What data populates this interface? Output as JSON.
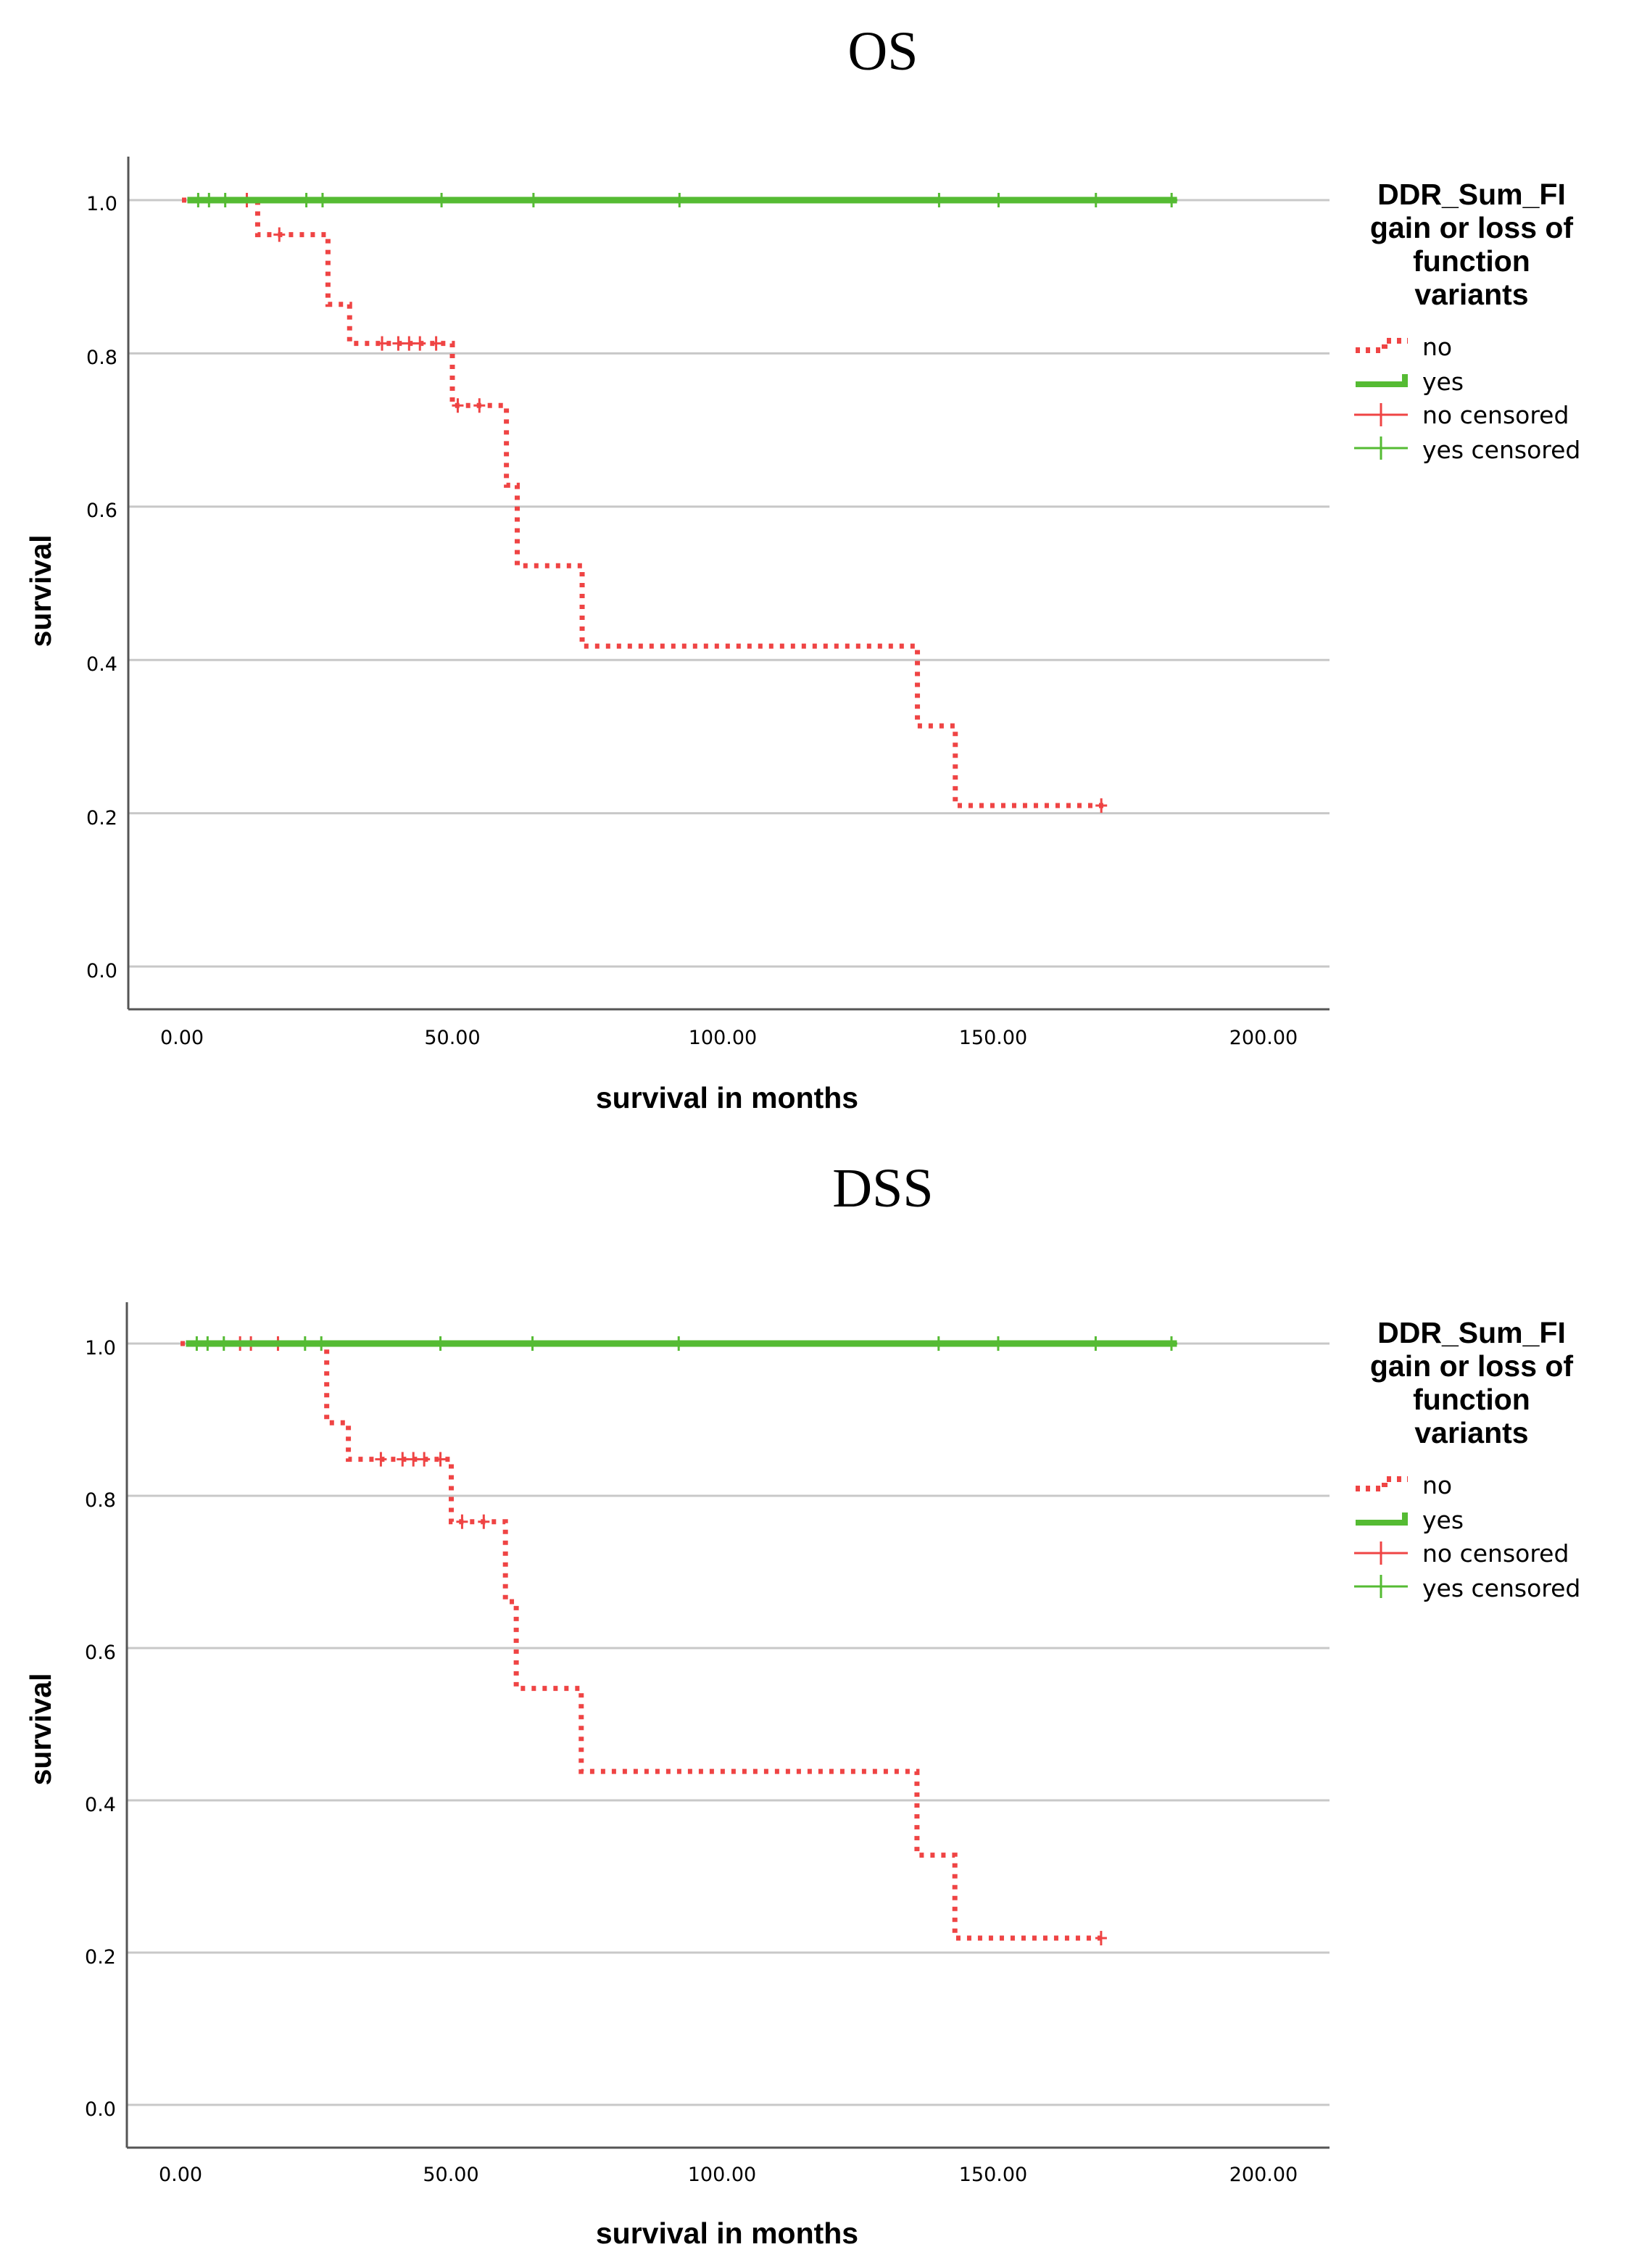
{
  "chart_data": [
    {
      "type": "line",
      "title": "OS",
      "xlabel": "survival in months",
      "ylabel": "survival",
      "xlim": [
        -10,
        212
      ],
      "ylim": [
        -0.05,
        1.06
      ],
      "xticks": [
        "0.00",
        "50.00",
        "100.00",
        "150.00",
        "200.00"
      ],
      "yticks": [
        "0.0",
        "0.2",
        "0.4",
        "0.6",
        "0.8",
        "1.0"
      ],
      "grid": "horizontal",
      "legend": {
        "position": "right",
        "title_lines": [
          "DDR_Sum_FI",
          "gain or loss of",
          "function",
          "variants"
        ],
        "entries": [
          "no",
          "yes",
          "no censored",
          "yes censored"
        ]
      },
      "series": [
        {
          "name": "no",
          "color": "#ef4444",
          "style": "dotted-step",
          "steps": [
            [
              0,
              1.0
            ],
            [
              14,
              0.955
            ],
            [
              27,
              0.864
            ],
            [
              31,
              0.813
            ],
            [
              50,
              0.732
            ],
            [
              60,
              0.628
            ],
            [
              62,
              0.523
            ],
            [
              74,
              0.418
            ],
            [
              136,
              0.314
            ],
            [
              143,
              0.21
            ],
            [
              171,
              0.21
            ]
          ],
          "censored_x": [
            12,
            18,
            37,
            40,
            42,
            44,
            47,
            51,
            55,
            170
          ]
        },
        {
          "name": "yes",
          "color": "#55bb33",
          "style": "solid-step",
          "steps": [
            [
              1,
              1.0
            ],
            [
              184,
              1.0
            ]
          ],
          "censored_x": [
            3,
            5,
            8,
            23,
            26,
            48,
            65,
            92,
            140,
            151,
            169,
            183
          ]
        }
      ]
    },
    {
      "type": "line",
      "title": "DSS",
      "xlabel": "survival in months",
      "ylabel": "survival",
      "xlim": [
        -10,
        212
      ],
      "ylim": [
        -0.05,
        1.06
      ],
      "xticks": [
        "0.00",
        "50.00",
        "100.00",
        "150.00",
        "200.00"
      ],
      "yticks": [
        "0.0",
        "0.2",
        "0.4",
        "0.6",
        "0.8",
        "1.0"
      ],
      "grid": "horizontal",
      "legend": {
        "position": "right",
        "title_lines": [
          "DDR_Sum_FI",
          "gain or loss of",
          "function",
          "variants"
        ],
        "entries": [
          "no",
          "yes",
          "no censored",
          "yes censored"
        ]
      },
      "series": [
        {
          "name": "no",
          "color": "#ef4444",
          "style": "dotted-step",
          "steps": [
            [
              0,
              1.0
            ],
            [
              27,
              0.896
            ],
            [
              31,
              0.848
            ],
            [
              50,
              0.766
            ],
            [
              60,
              0.661
            ],
            [
              62,
              0.547
            ],
            [
              74,
              0.438
            ],
            [
              136,
              0.328
            ],
            [
              143,
              0.219
            ],
            [
              171,
              0.219
            ]
          ],
          "censored_x": [
            11,
            13,
            18,
            37,
            41,
            43,
            45,
            48,
            52,
            56,
            170
          ]
        },
        {
          "name": "yes",
          "color": "#55bb33",
          "style": "solid-step",
          "steps": [
            [
              1,
              1.0
            ],
            [
              184,
              1.0
            ]
          ],
          "censored_x": [
            3,
            5,
            8,
            23,
            26,
            48,
            65,
            92,
            140,
            151,
            169,
            183
          ]
        }
      ]
    }
  ]
}
